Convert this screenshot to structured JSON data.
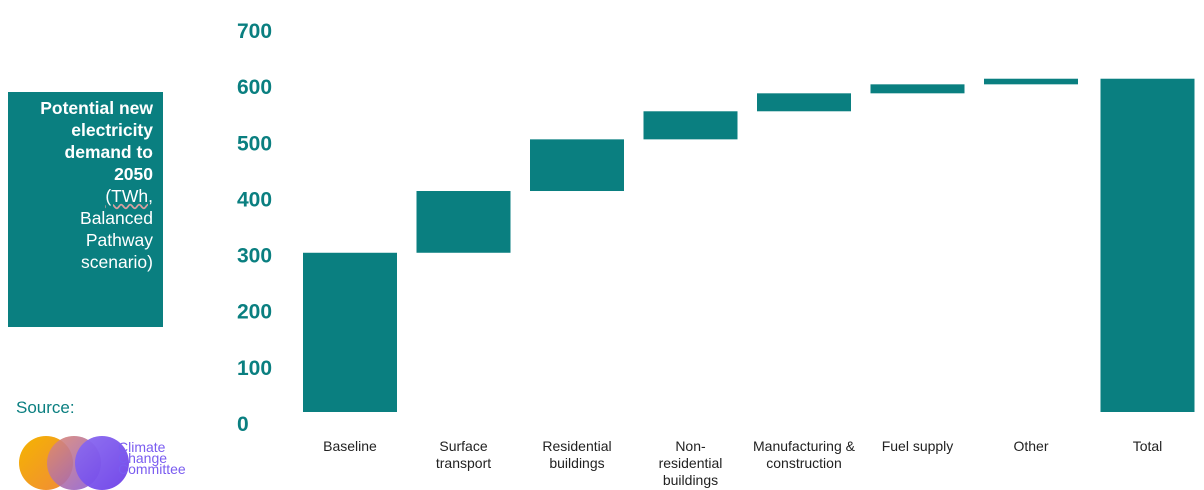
{
  "panel": {
    "title_lines": [
      "Potential new",
      "electricity",
      "demand to",
      "2050"
    ],
    "subtitle_lines": [
      "(TWh,",
      "Balanced",
      "Pathway",
      "scenario)"
    ]
  },
  "source": {
    "label": "Source:",
    "logo_text_lines": [
      "Climate",
      "Change",
      "Committee"
    ]
  },
  "colors": {
    "bar": "#0a7f80",
    "axis_text": "#0a7f80",
    "logo_text": "#7a5cf0"
  },
  "chart_data": {
    "type": "bar",
    "subtype": "waterfall",
    "ylim": [
      0,
      700
    ],
    "yticks": [
      0,
      100,
      200,
      300,
      400,
      500,
      600,
      700
    ],
    "grid": false,
    "categories": [
      {
        "label_lines": [
          "Baseline"
        ],
        "start": 0,
        "end": 305
      },
      {
        "label_lines": [
          "Surface",
          "transport"
        ],
        "start": 305,
        "end": 415
      },
      {
        "label_lines": [
          "Residential",
          "buildings"
        ],
        "start": 415,
        "end": 507
      },
      {
        "label_lines": [
          "Non-",
          "residential",
          "buildings"
        ],
        "start": 507,
        "end": 557
      },
      {
        "label_lines": [
          "Manufacturing &",
          "construction"
        ],
        "start": 557,
        "end": 589
      },
      {
        "label_lines": [
          "Fuel supply"
        ],
        "start": 589,
        "end": 605
      },
      {
        "label_lines": [
          "Other"
        ],
        "start": 605,
        "end": 615
      },
      {
        "label_lines": [
          "Total"
        ],
        "start": 0,
        "end": 615
      }
    ]
  }
}
